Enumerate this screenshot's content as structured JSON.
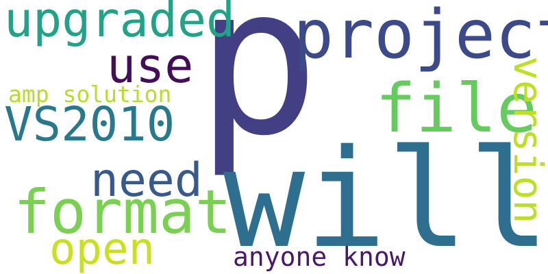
{
  "words": [
    {
      "key": "p",
      "text": "p",
      "color": "#433f84"
    },
    {
      "key": "will",
      "text": "will",
      "color": "#2e6e8e"
    },
    {
      "key": "project",
      "text": "project",
      "color": "#3c4a89"
    },
    {
      "key": "upgraded",
      "text": "upgraded",
      "color": "#20a386"
    },
    {
      "key": "use",
      "text": "use",
      "color": "#440d5a"
    },
    {
      "key": "file",
      "text": "file",
      "color": "#65cb5e"
    },
    {
      "key": "version",
      "text": "version",
      "color": "#bddf26"
    },
    {
      "key": "amp-solution",
      "text": "amp solution",
      "color": "#b5de2b"
    },
    {
      "key": "vs2010",
      "text": "VS2010",
      "color": "#29798e"
    },
    {
      "key": "need",
      "text": "need",
      "color": "#38598c"
    },
    {
      "key": "format",
      "text": "format",
      "color": "#7ad151"
    },
    {
      "key": "open",
      "text": "open",
      "color": "#c8e020"
    },
    {
      "key": "anyone-know",
      "text": "anyone know",
      "color": "#48186a"
    }
  ]
}
